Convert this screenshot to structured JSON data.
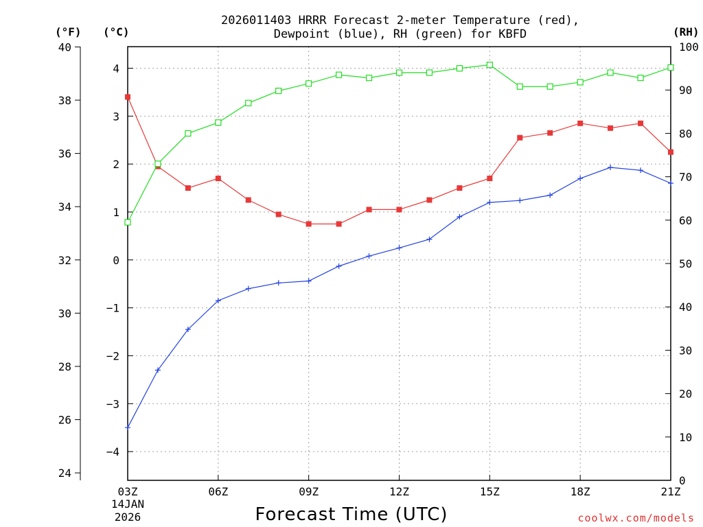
{
  "chart_data": {
    "type": "line",
    "title_line1": "2026011403 HRRR Forecast 2-meter Temperature (red),",
    "title_line2": "Dewpoint (blue), RH (green) for KBFD",
    "xlabel": "Forecast Time (UTC)",
    "credit": "coolwx.com/models",
    "date_label_day": "14JAN",
    "date_label_year": "2026",
    "units": {
      "fahrenheit": "(°F)",
      "celsius": "(°C)",
      "rh": "(RH)"
    },
    "x_hours": [
      3,
      4,
      5,
      6,
      7,
      8,
      9,
      10,
      11,
      12,
      13,
      14,
      15,
      16,
      17,
      18,
      19,
      20,
      21
    ],
    "x_ticks": [
      {
        "hour": 3,
        "label": "03Z"
      },
      {
        "hour": 6,
        "label": "06Z"
      },
      {
        "hour": 9,
        "label": "09Z"
      },
      {
        "hour": 12,
        "label": "12Z"
      },
      {
        "hour": 15,
        "label": "15Z"
      },
      {
        "hour": 18,
        "label": "18Z"
      },
      {
        "hour": 21,
        "label": "21Z"
      }
    ],
    "ylim_celsius": [
      -4.6,
      4.45
    ],
    "ylim_fahrenheit": [
      23.72,
      40.01
    ],
    "ylim_rh": [
      0,
      100
    ],
    "celsius_ticks": [
      "4",
      "3",
      "2",
      "1",
      "0",
      "−1",
      "−2",
      "−3",
      "−4"
    ],
    "fahrenheit_ticks": [
      "40",
      "38",
      "36",
      "34",
      "32",
      "30",
      "28",
      "26",
      "24"
    ],
    "rh_ticks": [
      "100",
      "90",
      "80",
      "70",
      "60",
      "50",
      "40",
      "30",
      "20",
      "10",
      "0"
    ],
    "series": [
      {
        "name": "Temperature",
        "unit": "C",
        "color": "#e83838",
        "marker": "filled-square",
        "values": [
          3.4,
          1.95,
          1.5,
          1.7,
          1.25,
          0.95,
          0.75,
          0.75,
          1.05,
          1.05,
          1.25,
          1.5,
          1.7,
          2.55,
          2.65,
          2.85,
          2.75,
          2.85,
          2.25
        ]
      },
      {
        "name": "Dewpoint",
        "unit": "C",
        "color": "#2040e0",
        "marker": "plus",
        "values": [
          -3.5,
          -2.3,
          -1.45,
          -0.85,
          -0.6,
          -0.48,
          -0.44,
          -0.13,
          0.08,
          0.25,
          0.43,
          0.9,
          1.2,
          1.24,
          1.35,
          1.7,
          1.93,
          1.87,
          1.6
        ]
      },
      {
        "name": "RH",
        "unit": "%",
        "color": "#22dd22",
        "marker": "open-square",
        "values": [
          59.5,
          73,
          80,
          82.5,
          87,
          89.8,
          91.5,
          93.5,
          92.8,
          94,
          94,
          95,
          95.8,
          90.8,
          90.8,
          91.8,
          94,
          92.8,
          95.2
        ]
      }
    ]
  }
}
